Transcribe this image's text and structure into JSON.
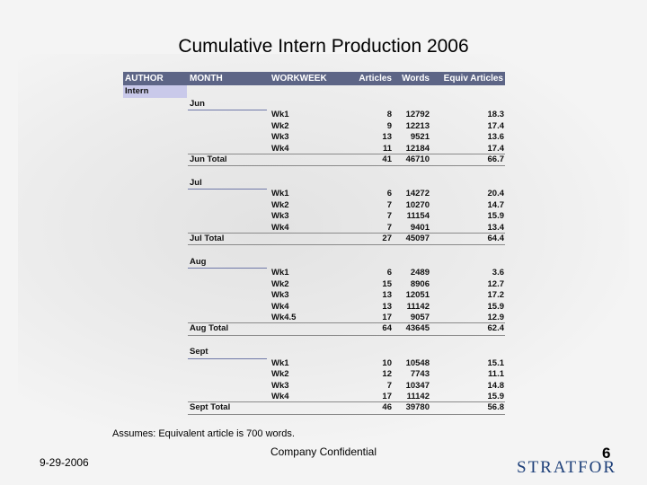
{
  "title": "Cumulative Intern Production 2006",
  "table": {
    "header": [
      "AUTHOR",
      "MONTH",
      "WORKWEEK",
      "Articles",
      "Words",
      "Equiv Articles"
    ],
    "author": "Intern",
    "groups": [
      {
        "month": "Jun",
        "weeks": [
          [
            "Wk1",
            8,
            12792,
            18.3
          ],
          [
            "Wk2",
            9,
            12213,
            17.4
          ],
          [
            "Wk3",
            13,
            9521,
            13.6
          ],
          [
            "Wk4",
            11,
            12184,
            17.4
          ]
        ],
        "total": [
          "Jun Total",
          41,
          46710,
          66.7
        ]
      },
      {
        "month": "Jul",
        "weeks": [
          [
            "Wk1",
            6,
            14272,
            20.4
          ],
          [
            "Wk2",
            7,
            10270,
            14.7
          ],
          [
            "Wk3",
            7,
            11154,
            15.9
          ],
          [
            "Wk4",
            7,
            9401,
            13.4
          ]
        ],
        "total": [
          "Jul Total",
          27,
          45097,
          64.4
        ]
      },
      {
        "month": "Aug",
        "weeks": [
          [
            "Wk1",
            6,
            2489,
            3.6
          ],
          [
            "Wk2",
            15,
            8906,
            12.7
          ],
          [
            "Wk3",
            13,
            12051,
            17.2
          ],
          [
            "Wk4",
            13,
            11142,
            15.9
          ],
          [
            "Wk4.5",
            17,
            9057,
            12.9
          ]
        ],
        "total": [
          "Aug Total",
          64,
          43645,
          62.4
        ]
      },
      {
        "month": "Sept",
        "weeks": [
          [
            "Wk1",
            10,
            10548,
            15.1
          ],
          [
            "Wk2",
            12,
            7743,
            11.1
          ],
          [
            "Wk3",
            7,
            10347,
            14.8
          ],
          [
            "Wk4",
            17,
            11142,
            15.9
          ]
        ],
        "total": [
          "Sept Total",
          46,
          39780,
          56.8
        ]
      }
    ]
  },
  "footer": {
    "note": "Assumes: Equivalent article is 700 words.",
    "date": "9-29-2006",
    "confidential": "Company Confidential",
    "page": "6",
    "logo": "STRATFOR"
  }
}
